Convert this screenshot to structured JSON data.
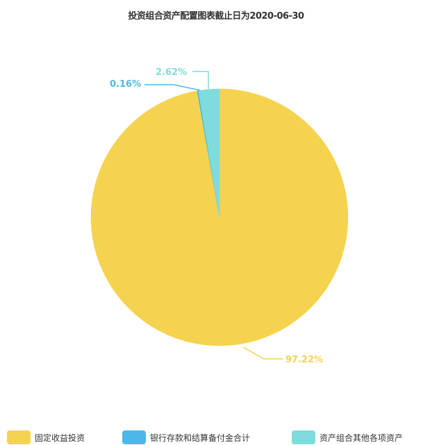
{
  "chart_data": {
    "type": "pie",
    "title": "投资组合资产配置图表截止日为2020-06-30",
    "slices": [
      {
        "label": "固定收益投资",
        "value": 97.22,
        "display": "97.22%",
        "color": "#f5d34f"
      },
      {
        "label": "银行存款和结算备付金合计",
        "value": 0.16,
        "display": "0.16%",
        "color": "#4db8e8"
      },
      {
        "label": "资产组合其他各项资产",
        "value": 2.62,
        "display": "2.62%",
        "color": "#7fdcdc"
      }
    ],
    "legend_position": "bottom"
  }
}
